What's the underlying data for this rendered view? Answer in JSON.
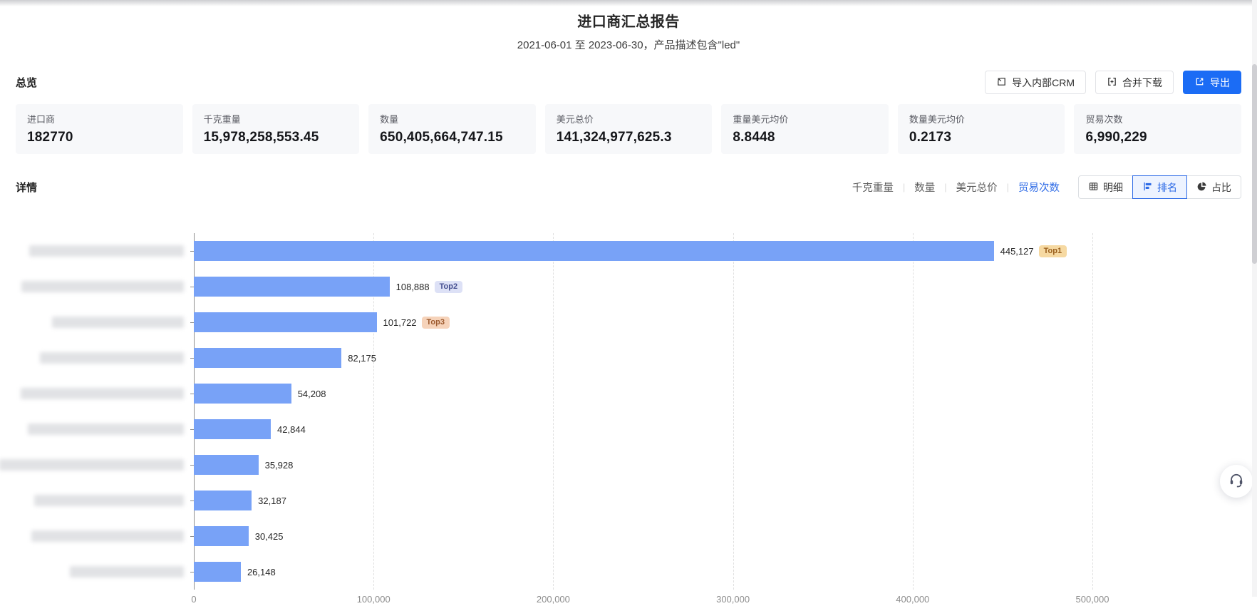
{
  "header": {
    "title": "进口商汇总报告",
    "subtitle": "2021-06-01 至 2023-06-30，产品描述包含\"led\""
  },
  "overview": {
    "section_label": "总览",
    "actions": [
      {
        "id": "import-crm",
        "label": "导入内部CRM",
        "icon": "import-icon",
        "primary": false
      },
      {
        "id": "merge-download",
        "label": "合并下载",
        "icon": "merge-icon",
        "primary": false
      },
      {
        "id": "export",
        "label": "导出",
        "icon": "export-icon",
        "primary": true
      }
    ],
    "cards": [
      {
        "label": "进口商",
        "value": "182770"
      },
      {
        "label": "千克重量",
        "value": "15,978,258,553.45"
      },
      {
        "label": "数量",
        "value": "650,405,664,747.15"
      },
      {
        "label": "美元总价",
        "value": "141,324,977,625.3"
      },
      {
        "label": "重量美元均价",
        "value": "8.8448"
      },
      {
        "label": "数量美元均价",
        "value": "0.2173"
      },
      {
        "label": "贸易次数",
        "value": "6,990,229"
      }
    ]
  },
  "detail": {
    "section_label": "详情",
    "metric_tabs": [
      {
        "label": "千克重量",
        "active": false
      },
      {
        "label": "数量",
        "active": false
      },
      {
        "label": "美元总价",
        "active": false
      },
      {
        "label": "贸易次数",
        "active": true
      }
    ],
    "view_buttons": [
      {
        "label": "明细",
        "icon": "table-icon",
        "active": false
      },
      {
        "label": "排名",
        "icon": "ranking-icon",
        "active": true
      },
      {
        "label": "占比",
        "icon": "pie-icon",
        "active": false
      }
    ]
  },
  "chart_data": {
    "type": "bar",
    "orientation": "horizontal",
    "title": "",
    "categories_redacted": true,
    "categories": [
      "",
      "",
      "",
      "",
      "",
      "",
      "",
      "",
      "",
      ""
    ],
    "values": [
      445127,
      108888,
      101722,
      82175,
      54208,
      42844,
      35928,
      32187,
      30425,
      26148
    ],
    "value_labels": [
      "445,127",
      "108,888",
      "101,722",
      "82,175",
      "54,208",
      "42,844",
      "35,928",
      "32,187",
      "30,425",
      "26,148"
    ],
    "badges": [
      {
        "row": 0,
        "label": "Top1",
        "class": "top1"
      },
      {
        "row": 1,
        "label": "Top2",
        "class": "top2"
      },
      {
        "row": 2,
        "label": "Top3",
        "class": "top3"
      }
    ],
    "x_ticks": [
      "0",
      "100,000",
      "200,000",
      "300,000",
      "400,000",
      "500,000"
    ],
    "x_tick_values": [
      0,
      100000,
      200000,
      300000,
      400000,
      500000
    ],
    "xlim": [
      0,
      500000
    ],
    "grid": "dashed-vertical",
    "legend": "none",
    "bar_color": "#78a2f7",
    "redacted_label_widths": [
      217,
      228,
      185,
      202,
      229,
      219,
      259,
      210,
      214,
      160
    ]
  },
  "floating": {
    "help": "headset-icon"
  },
  "colors": {
    "accent_blue": "#2e6be6",
    "primary_button": "#1b6cf5",
    "bar": "#78a2f7",
    "card_bg": "#f7f8fa",
    "badge_top1_bg": "#f6d9a2",
    "badge_top2_bg": "#dde1f6",
    "badge_top3_bg": "#f6d3ba"
  }
}
